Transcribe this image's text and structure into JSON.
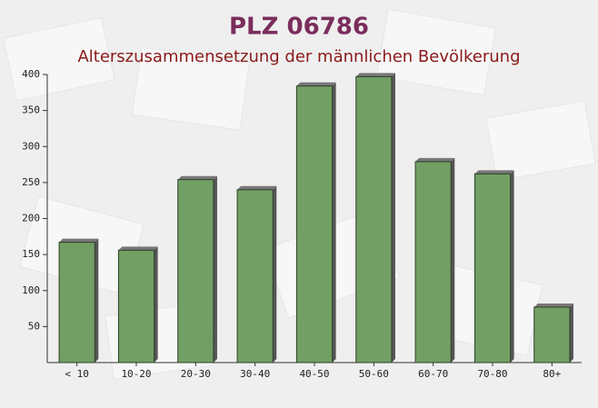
{
  "chart_data": {
    "type": "bar",
    "title": "PLZ 06786",
    "subtitle": "Alterszusammensetzung der männlichen Bevölkerung",
    "categories": [
      "< 10",
      "10-20",
      "20-30",
      "30-40",
      "40-50",
      "50-60",
      "60-70",
      "70-80",
      "80+"
    ],
    "values": [
      167,
      156,
      254,
      240,
      384,
      397,
      279,
      262,
      77
    ],
    "color": "#6a9a5c",
    "ylim": [
      0,
      400
    ],
    "yticks": [
      50,
      100,
      150,
      200,
      250,
      300,
      350,
      400
    ]
  }
}
